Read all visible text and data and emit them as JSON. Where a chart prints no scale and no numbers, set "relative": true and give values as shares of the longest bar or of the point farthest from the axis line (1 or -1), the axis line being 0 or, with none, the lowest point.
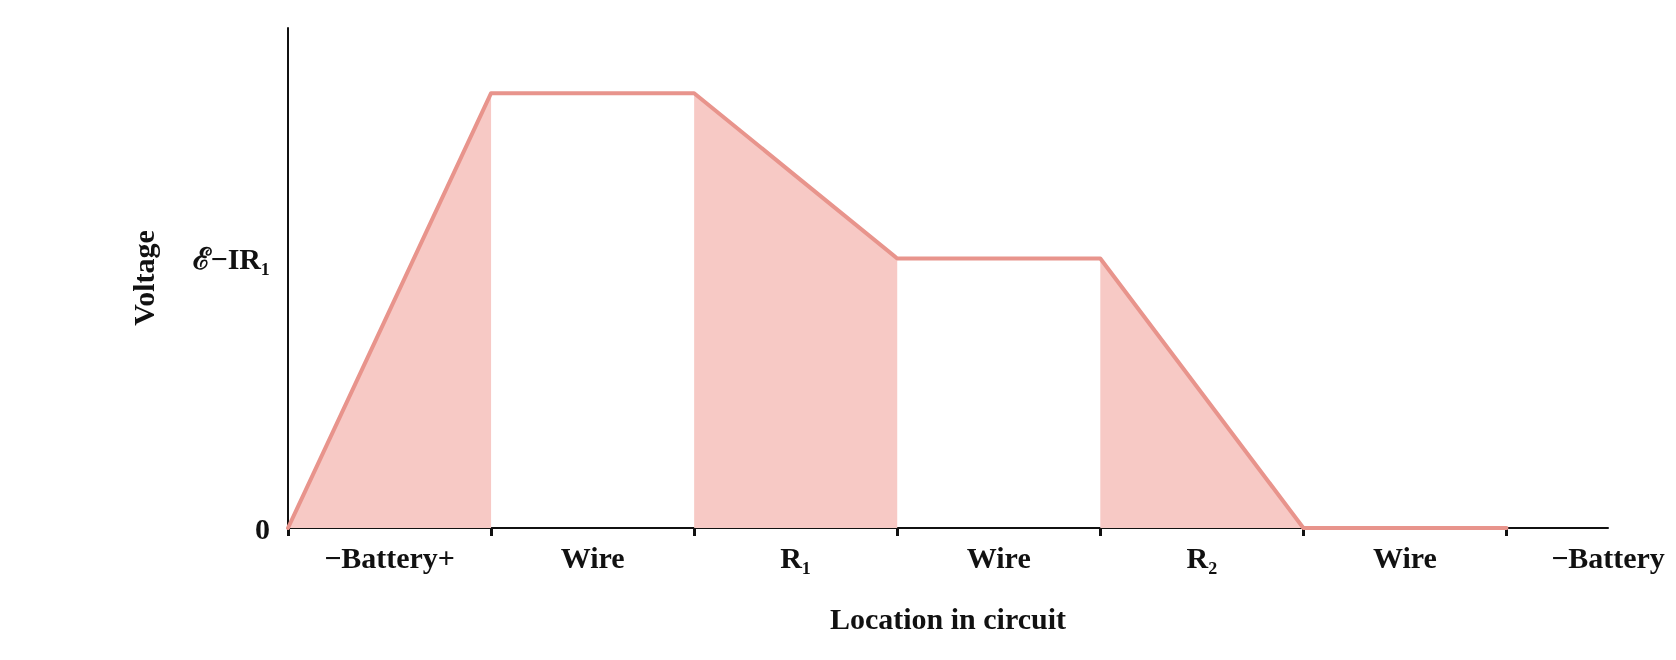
{
  "chart_data": {
    "type": "line",
    "relative": true,
    "xlabel": "Location in circuit",
    "ylabel": "Voltage",
    "categories": [
      null,
      "−Battery+",
      null,
      "Wire",
      null,
      "R₁",
      null,
      "Wire",
      null,
      "R₂",
      null,
      "Wire",
      null,
      "−Battery"
    ],
    "series": [
      {
        "type": "area",
        "color": "#f7c9c5",
        "values": [
          0,
          0.5,
          1,
          null,
          1,
          0.81,
          0.62,
          null,
          0.62,
          0.31,
          0,
          null,
          null,
          null
        ]
      },
      {
        "color": "#e8948c",
        "values": [
          0,
          0.5,
          1,
          1,
          1,
          0.81,
          0.62,
          0.62,
          0.62,
          0.31,
          0,
          0,
          0,
          null
        ]
      }
    ],
    "annotations": [
      "0",
      "ℰ−IR₁"
    ],
    "grid": false,
    "marker": "none",
    "line_style": "solid"
  }
}
